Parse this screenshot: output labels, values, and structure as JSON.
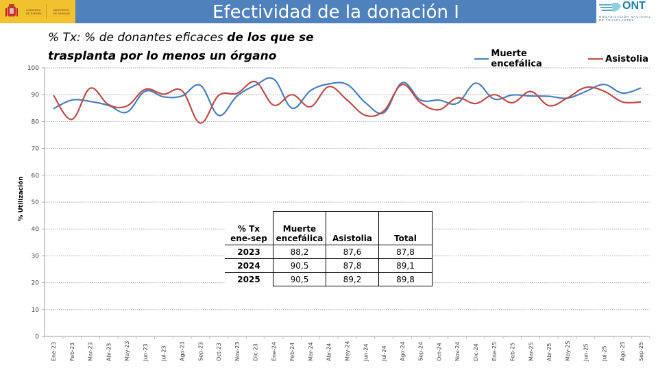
{
  "header": {
    "title": "Efectividad de la donación I",
    "gov_logo_lines": [
      "GOBIERNO",
      "DE ESPAÑA"
    ],
    "ministry_lines": [
      "MINISTERIO",
      "DE SANIDAD"
    ],
    "ont_logo": "ONT",
    "ont_subtitle_lines": [
      "ORGANIZACIÓN NACIONAL",
      "DE TRASPLANTES"
    ]
  },
  "subtitle": {
    "line1_normal": "% Tx: % de donantes eficaces ",
    "line1_bold": "de los que se",
    "line2_bold": "trasplanta  por lo menos  un órgano"
  },
  "colors": {
    "header_bg": "#4f81bd",
    "gov_bg": "#f2c12e",
    "series_me": "#4a7ebb",
    "series_asistolia": "#be4b48",
    "grid": "#a6a6a6"
  },
  "chart_data": {
    "type": "line",
    "title": "% Tx: % de donantes eficaces de los que se trasplanta por lo menos un órgano",
    "xlabel": "",
    "ylabel": "% Utilización",
    "ylim": [
      0,
      100
    ],
    "yticks": [
      0,
      10,
      20,
      30,
      40,
      50,
      60,
      70,
      80,
      90,
      100
    ],
    "grid": true,
    "legend_position": "top-right",
    "categories": [
      "Ene-23",
      "Feb-23",
      "Mar-23",
      "Abr-23",
      "May-23",
      "Jun-23",
      "Jul-23",
      "Ago-23",
      "Sep-23",
      "Oct-23",
      "Nov-23",
      "Dic-23",
      "Ene-24",
      "Feb-24",
      "Mar-24",
      "Abr-24",
      "May-24",
      "Jun-24",
      "Jul-24",
      "Ago-24",
      "Sep-24",
      "Oct-24",
      "Nov-24",
      "Dic-24",
      "Ene-25",
      "Feb-25",
      "Mar-25",
      "Abr-25",
      "May-25",
      "Jun-25",
      "Jul-25",
      "Ago-25",
      "Sep-25"
    ],
    "series": [
      {
        "name": "Muerte encefálica",
        "color": "#4a7ebb",
        "values": [
          84.8,
          88.0,
          87.5,
          86.0,
          83.5,
          91.3,
          89.2,
          89.5,
          93.5,
          82.3,
          89.5,
          93.5,
          95.8,
          85.0,
          91.5,
          94.0,
          93.8,
          87.0,
          83.3,
          94.5,
          88.0,
          88.0,
          86.8,
          94.3,
          88.4,
          89.9,
          89.5,
          89.4,
          88.7,
          91.2,
          93.8,
          90.6,
          92.5
        ]
      },
      {
        "name": "Asistolia",
        "color": "#be4b48",
        "values": [
          89.8,
          80.8,
          92.4,
          86.3,
          85.8,
          92.0,
          90.2,
          91.5,
          79.4,
          89.7,
          90.5,
          94.8,
          86.1,
          90.0,
          85.5,
          93.0,
          88.0,
          82.3,
          84.0,
          93.8,
          87.0,
          84.4,
          88.8,
          86.7,
          90.0,
          87.0,
          91.2,
          85.9,
          88.8,
          92.7,
          91.3,
          87.3,
          87.3
        ]
      }
    ]
  },
  "summary_table": {
    "headers": [
      "% Tx\nene-sep",
      "Muerte\nencefálica",
      "Asistolia",
      "Total"
    ],
    "header_lines": [
      [
        "% Tx",
        "ene-sep"
      ],
      [
        "Muerte",
        "encefálica"
      ],
      [
        "Asistolia"
      ],
      [
        "Total"
      ]
    ],
    "rows": [
      [
        "2023",
        "88,2",
        "87,6",
        "87,8"
      ],
      [
        "2024",
        "90,5",
        "87,8",
        "89,1"
      ],
      [
        "2025",
        "90,5",
        "89,2",
        "89,8"
      ]
    ]
  }
}
